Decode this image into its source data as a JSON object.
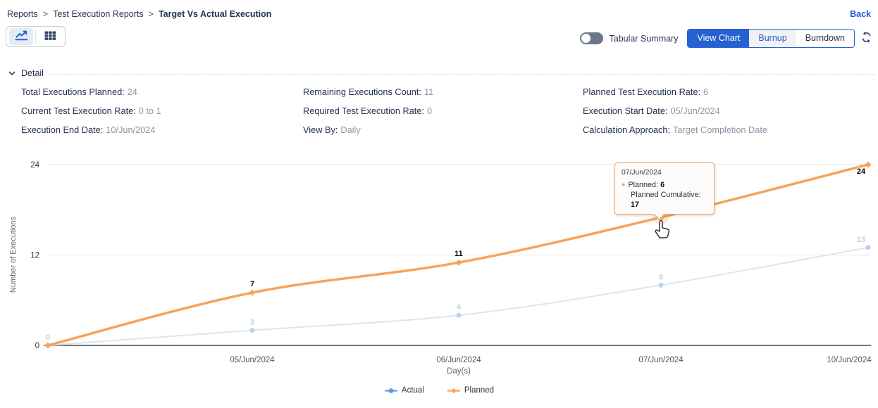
{
  "breadcrumb": {
    "separator": ">",
    "items": [
      "Reports",
      "Test Execution Reports",
      "Target Vs Actual Execution"
    ]
  },
  "back_label": "Back",
  "toolbar": {
    "tabular_summary_label": "Tabular Summary",
    "view_buttons": [
      "View Chart",
      "Burnup",
      "Burndown"
    ],
    "selected_view": "View Chart",
    "icons": {
      "chart_view": "line-chart-icon",
      "table_view": "table-grid-icon",
      "refresh": "refresh-icon"
    }
  },
  "detail": {
    "title": "Detail",
    "fields": [
      {
        "label": "Total Executions Planned:",
        "value": "24"
      },
      {
        "label": "Remaining Executions Count:",
        "value": "11"
      },
      {
        "label": "Planned Test Execution Rate:",
        "value": "6"
      },
      {
        "label": "Current Test Execution Rate:",
        "value": "0 to 1"
      },
      {
        "label": "Required Test Execution Rate:",
        "value": "0"
      },
      {
        "label": "Execution Start Date:",
        "value": "05/Jun/2024"
      },
      {
        "label": "Execution End Date:",
        "value": "10/Jun/2024"
      },
      {
        "label": "View By:",
        "value": "Daily"
      },
      {
        "label": "Calculation Approach:",
        "value": "Target Completion Date"
      }
    ]
  },
  "chart_data": {
    "type": "line",
    "title": "",
    "xlabel": "Day(s)",
    "ylabel": "Number of Executions",
    "ylim": [
      0,
      24
    ],
    "yticks": [
      0,
      12,
      24
    ],
    "grid": "horizontal",
    "legend_position": "bottom",
    "categories": [
      "",
      "05/Jun/2024",
      "06/Jun/2024",
      "07/Jun/2024",
      "10/Jun/2024"
    ],
    "series": [
      {
        "name": "Actual",
        "values": [
          0,
          2,
          4,
          8,
          13
        ],
        "color": "#5f9ad6",
        "marker": "circle",
        "dimmed": true
      },
      {
        "name": "Planned",
        "values": [
          0,
          7,
          11,
          17,
          24
        ],
        "color": "#f7a35c",
        "marker": "diamond",
        "dimmed": false
      }
    ],
    "hover": {
      "category": "07/Jun/2024",
      "series": "Planned"
    }
  },
  "tooltip": {
    "date": "07/Jun/2024",
    "series_label": "Planned:",
    "value": "6",
    "cumulative_label": "Planned Cumulative:",
    "cumulative_value": "17"
  },
  "colors": {
    "accent_blue": "#2760d0",
    "back_link": "#1d5bd6",
    "planned": "#f7a35c",
    "actual": "#5f9ad6",
    "dimmed_line": "#d9e6f6",
    "dimmed_marker": "#b9d2ee",
    "dimmed_label": "#c9cfd6",
    "text_dark": "#22314f",
    "text_muted": "#8b95a5",
    "gridline": "#e6e6e6",
    "axis_line": "#4a4a4a"
  }
}
